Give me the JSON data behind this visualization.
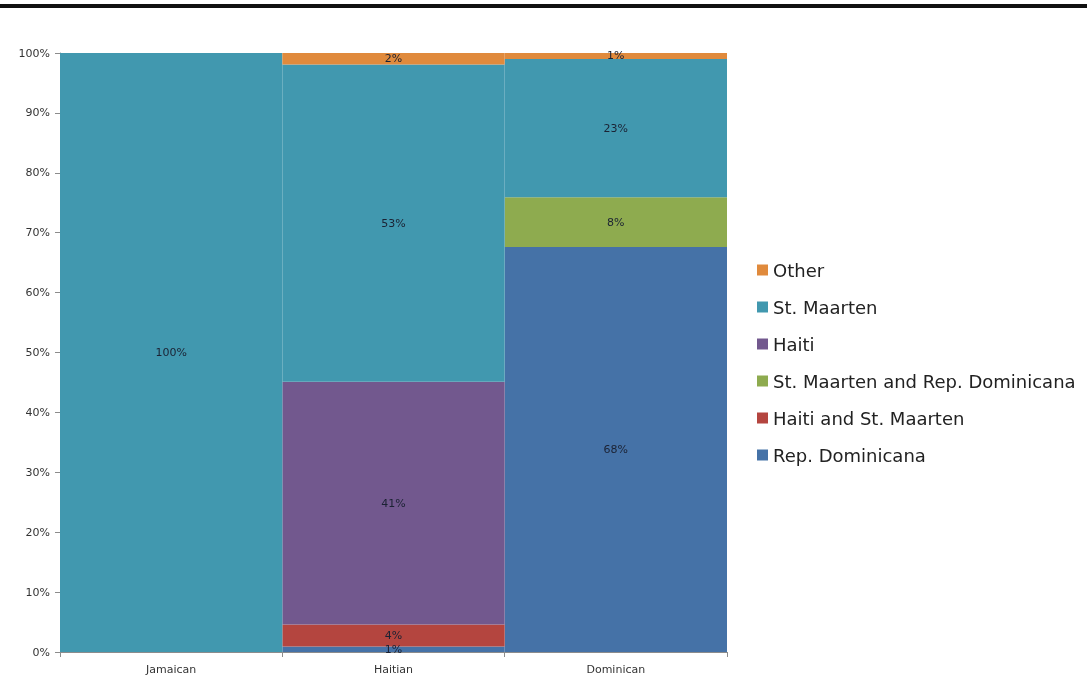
{
  "chart_data": {
    "type": "bar",
    "stacked": true,
    "categories": [
      "Jamaican",
      "Haitian",
      "Dominican"
    ],
    "series": [
      {
        "name": "Rep. Dominicana",
        "color": "#4572a7",
        "values": [
          null,
          0.9,
          67.6
        ],
        "value_labels": [
          null,
          "1%",
          "68%"
        ]
      },
      {
        "name": "Haiti and St. Maarten",
        "color": "#b4453f",
        "values": [
          null,
          3.7,
          null
        ],
        "value_labels": [
          null,
          "4%",
          null
        ]
      },
      {
        "name": "St. Maarten and Rep. Dominicana",
        "color": "#8eab4f",
        "values": [
          null,
          null,
          8.3
        ],
        "value_labels": [
          null,
          null,
          "8%"
        ]
      },
      {
        "name": "Haiti",
        "color": "#72588e",
        "values": [
          null,
          40.5,
          null
        ],
        "value_labels": [
          null,
          "41%",
          null
        ]
      },
      {
        "name": "St. Maarten",
        "color": "#4198af",
        "values": [
          100,
          53.0,
          23.1
        ],
        "value_labels": [
          "100%",
          "53%",
          "23%"
        ]
      },
      {
        "name": "Other",
        "color": "#e08a3c",
        "values": [
          null,
          1.9,
          1.0
        ],
        "value_labels": [
          null,
          "2%",
          "1%"
        ]
      }
    ],
    "ylim": [
      0,
      100
    ],
    "yticks": [
      {
        "value": 0,
        "label": "0%"
      },
      {
        "value": 10,
        "label": "10%"
      },
      {
        "value": 20,
        "label": "20%"
      },
      {
        "value": 30,
        "label": "30%"
      },
      {
        "value": 40,
        "label": "40%"
      },
      {
        "value": 50,
        "label": "50%"
      },
      {
        "value": 60,
        "label": "60%"
      },
      {
        "value": 70,
        "label": "70%"
      },
      {
        "value": 80,
        "label": "80%"
      },
      {
        "value": 90,
        "label": "90%"
      },
      {
        "value": 100,
        "label": "100%"
      }
    ],
    "legend": "right"
  }
}
